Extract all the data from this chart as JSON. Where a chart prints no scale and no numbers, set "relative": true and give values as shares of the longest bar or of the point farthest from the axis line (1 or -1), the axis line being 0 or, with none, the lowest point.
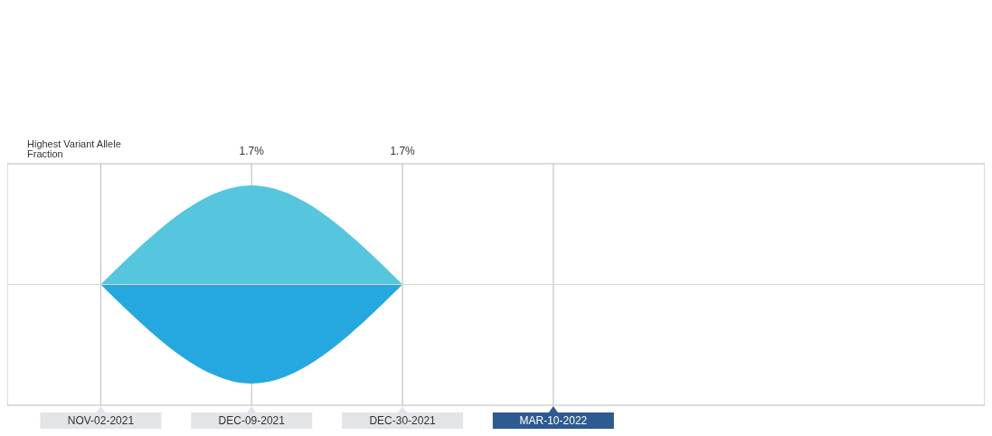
{
  "chart_data": {
    "type": "area",
    "relative": true,
    "categories": [
      "NOV-02-2021",
      "DEC-09-2021",
      "DEC-30-2021",
      "MAR-10-2022"
    ],
    "series": [
      {
        "color": "#56c5de",
        "values": [
          0,
          1,
          0,
          null
        ]
      },
      {
        "color": "#25a8df",
        "values": [
          0,
          -1,
          0,
          null
        ]
      }
    ],
    "annotations": [
      "Highest Variant Allele Fraction",
      "1.7%",
      "1.7%"
    ],
    "grid": "x"
  }
}
